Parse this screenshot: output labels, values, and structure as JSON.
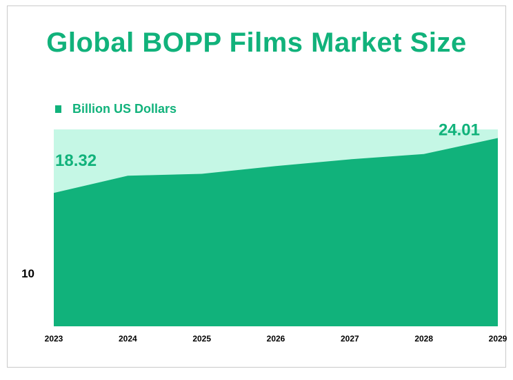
{
  "title": "Global BOPP Films Market Size",
  "colors": {
    "accent": "#11b27b",
    "plot_bg": "#c5f7e5",
    "axis_text": "#000000"
  },
  "chart_data": {
    "type": "area",
    "x": [
      "2023",
      "2024",
      "2025",
      "2026",
      "2027",
      "2028",
      "2029"
    ],
    "series": [
      {
        "name": "Billion US Dollars",
        "values": [
          18.32,
          20.1,
          20.3,
          21.1,
          21.8,
          22.35,
          24.01
        ]
      }
    ],
    "ytick_labels": [
      "10"
    ],
    "yticks": [
      10
    ],
    "ylim": [
      4.5,
      24.9
    ],
    "data_labels": [
      {
        "index": 0,
        "text": "18.32"
      },
      {
        "index": 6,
        "text": "24.01"
      }
    ],
    "legend_position": "top-left",
    "grid": false
  }
}
